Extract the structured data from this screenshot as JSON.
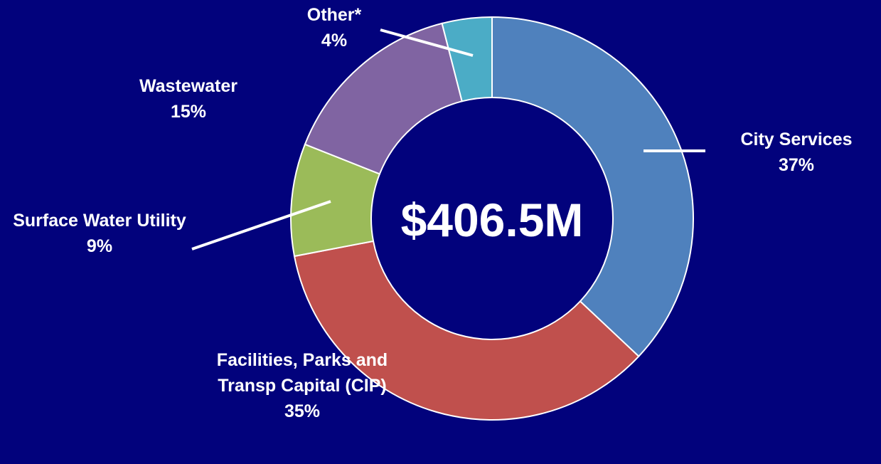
{
  "chart_data": {
    "type": "donut",
    "center_label": "$406.5M",
    "categories": [
      "City Services",
      "Facilities, Parks and Transp Capital (CIP)",
      "Surface Water Utility",
      "Wastewater",
      "Other*"
    ],
    "values": [
      37,
      35,
      9,
      15,
      4
    ],
    "value_labels": [
      "37%",
      "35%",
      "9%",
      "15%",
      "4%"
    ],
    "colors": [
      "#4f81bd",
      "#c0504d",
      "#9bbb59",
      "#8064a2",
      "#4bacc6"
    ]
  }
}
